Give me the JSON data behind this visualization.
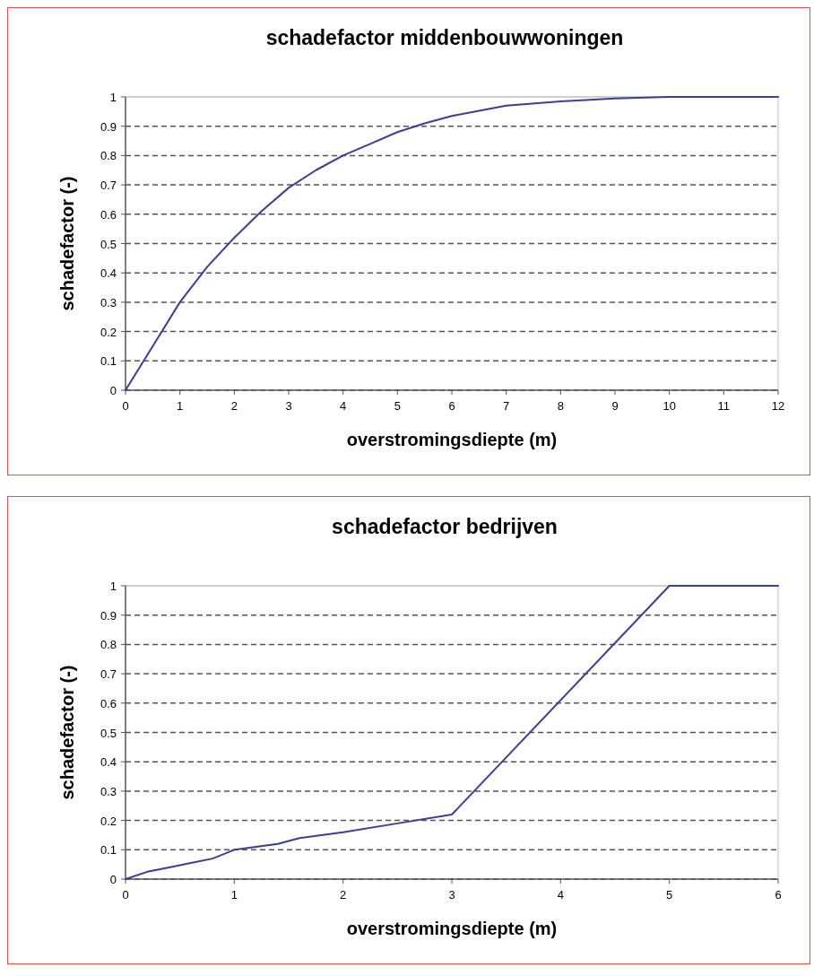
{
  "chart_data": [
    {
      "type": "line",
      "title": "schadefactor middenbouwwoningen",
      "xlabel": "overstromingsdiepte (m)",
      "ylabel": "schadefactor (-)",
      "xlim": [
        0,
        12
      ],
      "xticks": [
        0,
        1,
        2,
        3,
        4,
        5,
        6,
        7,
        8,
        9,
        10,
        11,
        12
      ],
      "ylim": [
        0,
        1
      ],
      "yticks": [
        0,
        0.1,
        0.2,
        0.3,
        0.4,
        0.5,
        0.6,
        0.7,
        0.8,
        0.9,
        1
      ],
      "grid": "y",
      "marker": "none",
      "line_style": "solid",
      "series": [
        {
          "color": "#3d3d94",
          "x": [
            0,
            0.5,
            1,
            1.5,
            2,
            2.5,
            3,
            3.5,
            4,
            4.5,
            5,
            5.5,
            6,
            7,
            8,
            9,
            10,
            11,
            12
          ],
          "values": [
            0,
            0.15,
            0.3,
            0.42,
            0.52,
            0.61,
            0.69,
            0.75,
            0.8,
            0.84,
            0.88,
            0.91,
            0.935,
            0.97,
            0.985,
            0.995,
            1,
            1,
            1
          ]
        }
      ]
    },
    {
      "type": "line",
      "title": "schadefactor bedrijven",
      "xlabel": "overstromingsdiepte (m)",
      "ylabel": "schadefactor (-)",
      "xlim": [
        0,
        6
      ],
      "xticks": [
        0,
        1,
        2,
        3,
        4,
        5,
        6
      ],
      "ylim": [
        0,
        1
      ],
      "yticks": [
        0,
        0.1,
        0.2,
        0.3,
        0.4,
        0.5,
        0.6,
        0.7,
        0.8,
        0.9,
        1
      ],
      "grid": "y",
      "marker": "none",
      "line_style": "solid",
      "series": [
        {
          "color": "#3d3d94",
          "x": [
            0,
            0.2,
            0.4,
            0.6,
            0.8,
            1,
            1.2,
            1.4,
            1.6,
            1.8,
            2,
            2.5,
            3,
            5,
            6
          ],
          "values": [
            0,
            0.025,
            0.04,
            0.055,
            0.07,
            0.1,
            0.11,
            0.12,
            0.14,
            0.15,
            0.16,
            0.19,
            0.22,
            1,
            1
          ]
        }
      ]
    }
  ]
}
